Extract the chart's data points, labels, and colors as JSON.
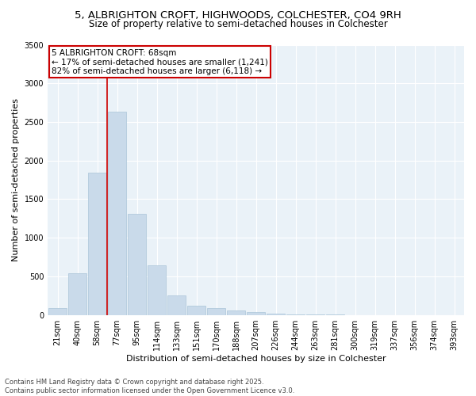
{
  "title1": "5, ALBRIGHTON CROFT, HIGHWOODS, COLCHESTER, CO4 9RH",
  "title2": "Size of property relative to semi-detached houses in Colchester",
  "xlabel": "Distribution of semi-detached houses by size in Colchester",
  "ylabel": "Number of semi-detached properties",
  "categories": [
    "21sqm",
    "40sqm",
    "58sqm",
    "77sqm",
    "95sqm",
    "114sqm",
    "133sqm",
    "151sqm",
    "170sqm",
    "188sqm",
    "207sqm",
    "226sqm",
    "244sqm",
    "263sqm",
    "281sqm",
    "300sqm",
    "319sqm",
    "337sqm",
    "356sqm",
    "374sqm",
    "393sqm"
  ],
  "values": [
    90,
    540,
    1840,
    2630,
    1310,
    640,
    250,
    120,
    90,
    60,
    35,
    20,
    10,
    5,
    3,
    2,
    1,
    1,
    0,
    0,
    0
  ],
  "bar_color": "#c9daea",
  "bar_edge_color": "#aac4d8",
  "vline_color": "#cc0000",
  "annotation_text": "5 ALBRIGHTON CROFT: 68sqm\n← 17% of semi-detached houses are smaller (1,241)\n82% of semi-detached houses are larger (6,118) →",
  "annotation_box_color": "#ffffff",
  "annotation_box_edge": "#cc0000",
  "ylim": [
    0,
    3500
  ],
  "yticks": [
    0,
    500,
    1000,
    1500,
    2000,
    2500,
    3000,
    3500
  ],
  "footer": "Contains HM Land Registry data © Crown copyright and database right 2025.\nContains public sector information licensed under the Open Government Licence v3.0.",
  "bg_color": "#ffffff",
  "plot_bg_color": "#eaf2f8",
  "grid_color": "#ffffff",
  "title_fontsize": 9.5,
  "subtitle_fontsize": 8.5,
  "axis_label_fontsize": 8,
  "tick_fontsize": 7,
  "annotation_fontsize": 7.5,
  "footer_fontsize": 6,
  "vline_x_index": 2
}
